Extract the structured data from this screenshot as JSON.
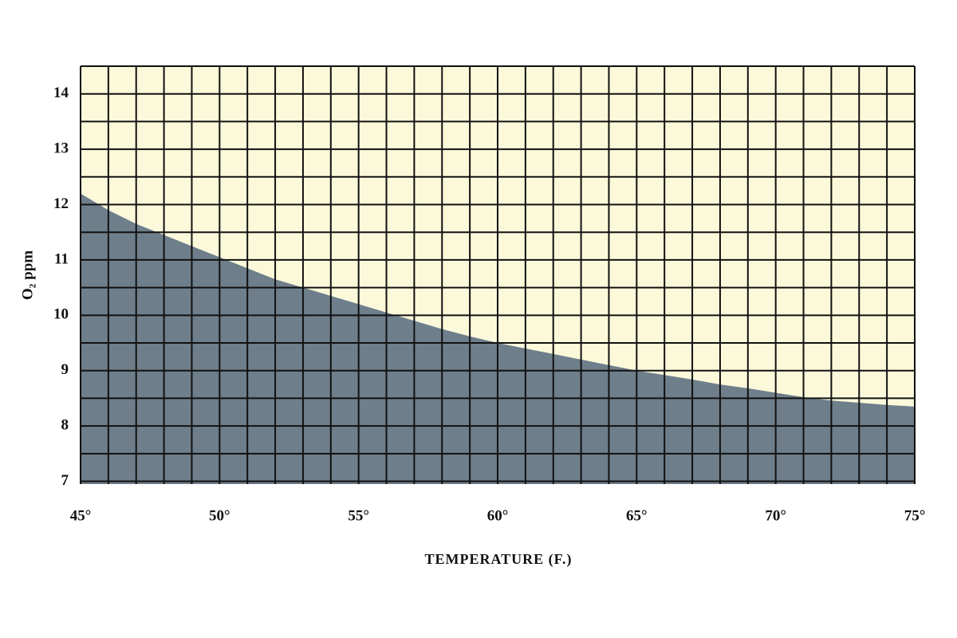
{
  "chart_data": {
    "type": "area",
    "xlabel": "TEMPERATURE (F.)",
    "ylabel": "O₂ ppm",
    "x": [
      45,
      46,
      47,
      48,
      49,
      50,
      51,
      52,
      53,
      54,
      55,
      56,
      57,
      58,
      59,
      60,
      61,
      62,
      63,
      64,
      65,
      66,
      67,
      68,
      69,
      70,
      71,
      72,
      73,
      74,
      75
    ],
    "series": [
      {
        "color": "#6e7e8b",
        "values": [
          12.2,
          11.9,
          11.65,
          11.45,
          11.25,
          11.05,
          10.85,
          10.65,
          10.5,
          10.35,
          10.2,
          10.05,
          9.9,
          9.75,
          9.62,
          9.5,
          9.4,
          9.3,
          9.2,
          9.1,
          9.0,
          8.92,
          8.84,
          8.75,
          8.68,
          8.6,
          8.52,
          8.46,
          8.42,
          8.38,
          8.35
        ]
      }
    ],
    "background": "#fbf9da",
    "xlim": [
      45,
      75
    ],
    "ylim": [
      6.95,
      14.5
    ],
    "xticks": [
      {
        "value": 45,
        "label": "45°"
      },
      {
        "value": 50,
        "label": "50°"
      },
      {
        "value": 55,
        "label": "55°"
      },
      {
        "value": 60,
        "label": "60°"
      },
      {
        "value": 65,
        "label": "65°"
      },
      {
        "value": 70,
        "label": "70°"
      },
      {
        "value": 75,
        "label": "75°"
      }
    ],
    "yticks": [
      7,
      8,
      9,
      10,
      11,
      12,
      13,
      14
    ],
    "grid": {
      "x_step": 1,
      "y_step": 0.5
    }
  }
}
